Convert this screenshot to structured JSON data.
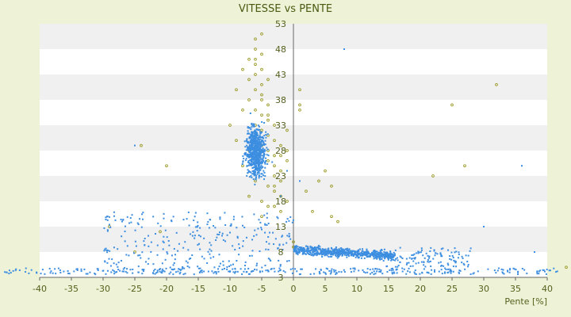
{
  "chart_data": {
    "type": "scatter",
    "title": "VITESSE vs PENTE",
    "xlabel": "Pente [%]",
    "ylabel": "",
    "xlim": [
      -40,
      40
    ],
    "ylim": [
      3,
      53
    ],
    "x_ticks": [
      "-40",
      "-35",
      "-30",
      "-25",
      "-20",
      "-15",
      "-10",
      "-5",
      "0",
      "5",
      "10",
      "15",
      "20",
      "25",
      "30",
      "35",
      "40"
    ],
    "y_ticks": [
      "3",
      "8",
      "13",
      "18",
      "23",
      "28",
      "33",
      "38",
      "43",
      "48",
      "53"
    ],
    "grid": "horizontal bands",
    "legend": "none",
    "colors": {
      "background": "#eef2d6",
      "plot_band_light": "#ffffff",
      "plot_band_dark": "#f0f0f0",
      "series_blue": "#3d8ee0",
      "series_olive": "#9a9a28",
      "axis": "#666666"
    },
    "series": [
      {
        "color": "#9a9a28",
        "points": [
          [
            -6,
            50
          ],
          [
            -5,
            51
          ],
          [
            -6,
            48
          ],
          [
            -5,
            47
          ],
          [
            -7,
            46
          ],
          [
            -6,
            45
          ],
          [
            -5,
            44
          ],
          [
            -6,
            43
          ],
          [
            -7,
            42
          ],
          [
            -5,
            41
          ],
          [
            -6,
            40
          ],
          [
            -5,
            39
          ],
          [
            -7,
            38
          ],
          [
            -4,
            37
          ],
          [
            -6,
            36
          ],
          [
            -5,
            35
          ],
          [
            -4,
            34
          ],
          [
            -6,
            33
          ],
          [
            -5,
            32
          ],
          [
            -4,
            31
          ],
          [
            -3,
            30
          ],
          [
            -5,
            29
          ],
          [
            -4,
            28
          ],
          [
            -3,
            27
          ],
          [
            -4,
            26
          ],
          [
            -3,
            25
          ],
          [
            -2,
            24
          ],
          [
            -3,
            23
          ],
          [
            -2,
            22
          ],
          [
            -4,
            21
          ],
          [
            -3,
            20
          ],
          [
            -2,
            19
          ],
          [
            -1,
            18
          ],
          [
            -3,
            17
          ],
          [
            -2,
            16
          ],
          [
            -8,
            44
          ],
          [
            -9,
            40
          ],
          [
            -8,
            36
          ],
          [
            -10,
            33
          ],
          [
            -9,
            30
          ],
          [
            -7,
            28
          ],
          [
            -8,
            25
          ],
          [
            -6,
            22
          ],
          [
            -7,
            19
          ],
          [
            -5,
            18
          ],
          [
            1,
            40
          ],
          [
            1,
            37
          ],
          [
            1,
            36
          ],
          [
            2,
            20
          ],
          [
            3,
            16
          ],
          [
            4,
            22
          ],
          [
            5,
            24
          ],
          [
            6,
            21
          ],
          [
            6,
            15
          ],
          [
            7,
            14
          ],
          [
            -24,
            29
          ],
          [
            -20,
            25
          ],
          [
            -25,
            8
          ],
          [
            -29,
            13
          ],
          [
            -21,
            12
          ],
          [
            25,
            37
          ],
          [
            32,
            41
          ],
          [
            27,
            25
          ],
          [
            22,
            23
          ],
          [
            43,
            5
          ],
          [
            -1,
            28
          ],
          [
            -1,
            32
          ],
          [
            0,
            10
          ],
          [
            0,
            9
          ],
          [
            -6,
            46
          ],
          [
            -4,
            42
          ],
          [
            -5,
            38
          ],
          [
            -4,
            35
          ],
          [
            -3,
            33
          ],
          [
            -2,
            29
          ],
          [
            -1,
            26
          ],
          [
            -2,
            27
          ],
          [
            -3,
            21
          ],
          [
            -4,
            17
          ],
          [
            -5,
            15
          ]
        ]
      }
    ]
  }
}
